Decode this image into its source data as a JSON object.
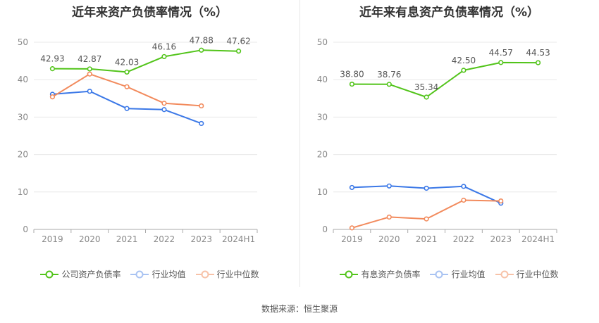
{
  "chart_data": [
    {
      "type": "line",
      "title": "近年来资产负债率情况（%）",
      "categories": [
        "2019",
        "2020",
        "2021",
        "2022",
        "2023",
        "2024H1"
      ],
      "ylim": [
        0,
        50
      ],
      "yticks": [
        0,
        10,
        20,
        30,
        40,
        50
      ],
      "grid": true,
      "legend_position": "bottom",
      "series": [
        {
          "name": "公司资产负债率",
          "color": "#52c41a",
          "values": [
            42.93,
            42.87,
            42.03,
            46.16,
            47.88,
            47.62
          ],
          "labels": [
            "42.93",
            "42.87",
            "42.03",
            "46.16",
            "47.88",
            "47.62"
          ]
        },
        {
          "name": "行业均值",
          "color": "#3b78e7",
          "values": [
            36.1,
            36.9,
            32.3,
            32.0,
            28.3,
            null
          ]
        },
        {
          "name": "行业中位数",
          "color": "#f28a5c",
          "values": [
            35.4,
            41.5,
            38.1,
            33.7,
            33.0,
            null
          ]
        }
      ]
    },
    {
      "type": "line",
      "title": "近年来有息资产负债率情况（%）",
      "categories": [
        "2019",
        "2020",
        "2021",
        "2022",
        "2023",
        "2024H1"
      ],
      "ylim": [
        0,
        50
      ],
      "yticks": [
        0,
        10,
        20,
        30,
        40,
        50
      ],
      "grid": true,
      "legend_position": "bottom",
      "series": [
        {
          "name": "有息资产负债率",
          "color": "#52c41a",
          "values": [
            38.8,
            38.76,
            35.34,
            42.5,
            44.57,
            44.53
          ],
          "labels": [
            "38.80",
            "38.76",
            "35.34",
            "42.50",
            "44.57",
            "44.53"
          ]
        },
        {
          "name": "行业均值",
          "color": "#3b78e7",
          "values": [
            11.2,
            11.6,
            11.0,
            11.5,
            7.0,
            null
          ]
        },
        {
          "name": "行业中位数",
          "color": "#f28a5c",
          "values": [
            0.4,
            3.3,
            2.8,
            7.8,
            7.6,
            null
          ]
        }
      ]
    }
  ],
  "source_text": "数据来源：恒生聚源"
}
